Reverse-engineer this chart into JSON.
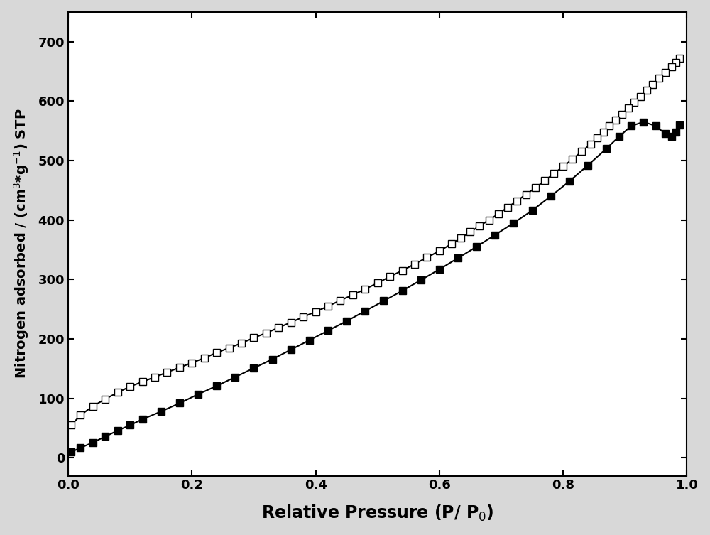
{
  "title": "",
  "xlabel": "Relative Pressure (P/ P$_0$)",
  "ylabel": "Nitrogen adsorbed / (cm$^3$*g$^{-1}$) STP",
  "xlim": [
    0.0,
    1.0
  ],
  "ylim": [
    -30,
    750
  ],
  "yticks": [
    0,
    100,
    200,
    300,
    400,
    500,
    600,
    700
  ],
  "xticks": [
    0.0,
    0.2,
    0.4,
    0.6,
    0.8,
    1.0
  ],
  "adsorption_x": [
    0.005,
    0.02,
    0.04,
    0.06,
    0.08,
    0.1,
    0.12,
    0.15,
    0.18,
    0.21,
    0.24,
    0.27,
    0.3,
    0.33,
    0.36,
    0.39,
    0.42,
    0.45,
    0.48,
    0.51,
    0.54,
    0.57,
    0.6,
    0.63,
    0.66,
    0.69,
    0.72,
    0.75,
    0.78,
    0.81,
    0.84,
    0.87,
    0.89,
    0.91,
    0.93,
    0.95,
    0.965,
    0.975,
    0.982,
    0.988
  ],
  "adsorption_y": [
    10,
    17,
    26,
    36,
    46,
    55,
    65,
    78,
    92,
    107,
    121,
    136,
    151,
    166,
    182,
    198,
    214,
    230,
    247,
    264,
    281,
    299,
    317,
    336,
    355,
    375,
    395,
    416,
    440,
    465,
    492,
    520,
    540,
    558,
    565,
    558,
    545,
    540,
    548,
    560
  ],
  "desorption_x": [
    0.988,
    0.982,
    0.975,
    0.965,
    0.955,
    0.945,
    0.935,
    0.925,
    0.915,
    0.905,
    0.895,
    0.885,
    0.875,
    0.865,
    0.855,
    0.845,
    0.83,
    0.815,
    0.8,
    0.785,
    0.77,
    0.755,
    0.74,
    0.725,
    0.71,
    0.695,
    0.68,
    0.665,
    0.65,
    0.635,
    0.62,
    0.6,
    0.58,
    0.56,
    0.54,
    0.52,
    0.5,
    0.48,
    0.46,
    0.44,
    0.42,
    0.4,
    0.38,
    0.36,
    0.34,
    0.32,
    0.3,
    0.28,
    0.26,
    0.24,
    0.22,
    0.2,
    0.18,
    0.16,
    0.14,
    0.12,
    0.1,
    0.08,
    0.06,
    0.04,
    0.02,
    0.005
  ],
  "desorption_y": [
    672,
    665,
    658,
    648,
    638,
    628,
    618,
    608,
    598,
    588,
    578,
    568,
    558,
    548,
    538,
    528,
    515,
    502,
    490,
    478,
    466,
    454,
    443,
    432,
    421,
    410,
    400,
    390,
    380,
    370,
    360,
    348,
    337,
    326,
    315,
    305,
    294,
    284,
    274,
    265,
    255,
    246,
    237,
    228,
    219,
    210,
    202,
    193,
    185,
    177,
    168,
    160,
    152,
    144,
    136,
    128,
    120,
    110,
    99,
    87,
    72,
    55
  ],
  "background_color": "#ffffff",
  "line_color": "#000000",
  "adsorption_markerface": "#000000",
  "desorption_markerface": "#ffffff",
  "markersize": 7,
  "linewidth": 1.5,
  "figure_facecolor": "#d8d8d8"
}
